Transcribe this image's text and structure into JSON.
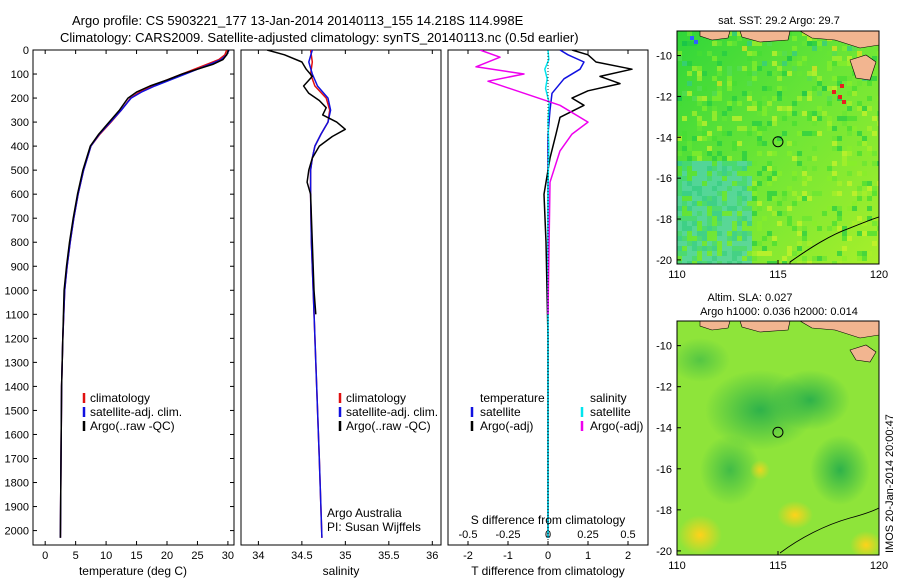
{
  "header": {
    "line1": "Argo profile: CS 5903221_177 13-Jan-2014 20140113_155 14.218S 114.998E",
    "line2": "Climatology: CARS2009. Satellite-adjusted climatology: synTS_20140113.nc (0.5d earlier)"
  },
  "colors": {
    "climatology": "#e01010",
    "satellite": "#1010e0",
    "argo": "#000000",
    "sat_salinity": "#00e5ee",
    "argo_adj_salinity": "#ee00ee"
  },
  "chart_data": [
    {
      "id": "temperature",
      "type": "line",
      "xlabel": "temperature (deg C)",
      "xlim": [
        -2,
        31
      ],
      "xticks": [
        0,
        5,
        10,
        15,
        20,
        25,
        30
      ],
      "ylim": [
        2060,
        0
      ],
      "yticks": [
        0,
        100,
        200,
        300,
        400,
        500,
        600,
        700,
        800,
        900,
        1000,
        1100,
        1200,
        1300,
        1400,
        1500,
        1600,
        1700,
        1800,
        1900,
        2000
      ],
      "legend": [
        "climatology",
        "satellite-adj. clim.",
        "Argo(..raw -QC)"
      ],
      "series": [
        {
          "name": "climatology",
          "color_key": "climatology",
          "x": [
            29.8,
            29.5,
            28.5,
            26.5,
            24.5,
            22.5,
            20.0,
            17.5,
            15.5,
            14.0,
            12.5,
            10.8,
            9.0,
            7.5,
            6.3,
            5.4,
            4.7,
            4.1,
            3.6,
            3.2,
            2.9,
            2.7,
            2.6,
            2.5
          ],
          "y": [
            0,
            20,
            40,
            60,
            80,
            100,
            125,
            150,
            175,
            200,
            250,
            300,
            350,
            400,
            500,
            600,
            700,
            800,
            900,
            1000,
            1200,
            1400,
            1700,
            2030
          ]
        },
        {
          "name": "satellite-adj. clim.",
          "color_key": "satellite",
          "x": [
            30.2,
            29.8,
            28.9,
            27.0,
            25.0,
            23.0,
            20.5,
            18.0,
            15.8,
            14.1,
            12.5,
            10.7,
            8.9,
            7.5,
            6.3,
            5.4,
            4.7,
            4.1,
            3.6,
            3.2,
            2.9,
            2.7,
            2.6,
            2.5
          ],
          "y": [
            0,
            20,
            40,
            60,
            80,
            100,
            125,
            150,
            175,
            200,
            250,
            300,
            350,
            400,
            500,
            600,
            700,
            800,
            900,
            1000,
            1200,
            1400,
            1700,
            2030
          ]
        },
        {
          "name": "Argo(..raw -QC)",
          "color_key": "argo",
          "x": [
            30.1,
            29.8,
            29.2,
            27.5,
            25.0,
            22.5,
            20.0,
            17.2,
            15.0,
            13.6,
            12.2,
            10.5,
            8.8,
            7.4,
            6.2,
            5.3,
            4.6,
            4.0,
            3.5,
            3.1,
            2.9,
            2.7,
            2.6,
            2.5
          ],
          "y": [
            0,
            20,
            40,
            60,
            80,
            100,
            125,
            150,
            175,
            200,
            250,
            300,
            350,
            400,
            500,
            600,
            700,
            800,
            900,
            1000,
            1200,
            1400,
            1700,
            2030
          ]
        }
      ]
    },
    {
      "id": "salinity",
      "type": "line",
      "xlabel": "salinity",
      "xlim": [
        33.8,
        36.1
      ],
      "xticks": [
        34,
        34.5,
        35,
        35.5,
        36
      ],
      "ylim": [
        2060,
        0
      ],
      "legend": [
        "climatology",
        "satellite-adj. clim.",
        "Argo(..raw -QC)"
      ],
      "annotation": [
        "Argo Australia",
        "PI: Susan Wijffels"
      ],
      "series": [
        {
          "name": "climatology",
          "color_key": "climatology",
          "x": [
            34.6,
            34.62,
            34.6,
            34.65,
            34.78,
            34.82,
            34.8,
            34.72,
            34.65,
            34.62,
            34.6,
            34.6,
            34.61,
            34.63,
            34.66,
            34.7,
            34.73
          ],
          "y": [
            0,
            50,
            100,
            150,
            200,
            250,
            300,
            350,
            400,
            450,
            500,
            600,
            800,
            1000,
            1300,
            1700,
            2030
          ]
        },
        {
          "name": "satellite-adj. clim.",
          "color_key": "satellite",
          "x": [
            34.62,
            34.58,
            34.62,
            34.68,
            34.8,
            34.83,
            34.8,
            34.72,
            34.65,
            34.62,
            34.6,
            34.6,
            34.61,
            34.63,
            34.66,
            34.7,
            34.73
          ],
          "y": [
            0,
            50,
            100,
            150,
            200,
            250,
            300,
            350,
            400,
            450,
            500,
            600,
            800,
            1000,
            1300,
            1700,
            2030
          ]
        },
        {
          "name": "Argo(..raw -QC)",
          "color_key": "argo",
          "x": [
            34.1,
            34.3,
            34.5,
            34.55,
            34.62,
            34.52,
            34.58,
            34.7,
            34.78,
            34.74,
            34.9,
            35.0,
            34.85,
            34.7,
            34.62,
            34.58,
            34.56,
            34.6,
            34.62,
            34.64,
            34.66
          ],
          "y": [
            0,
            20,
            50,
            80,
            110,
            150,
            180,
            210,
            240,
            270,
            300,
            330,
            360,
            400,
            450,
            500,
            550,
            600,
            800,
            1000,
            1100
          ]
        }
      ]
    },
    {
      "id": "difference",
      "type": "line",
      "xlabel": "T difference from climatology",
      "xlabel2": "S difference from climatology",
      "xlim": [
        -2.5,
        2.5
      ],
      "xticks": [
        -2,
        -1,
        0,
        1,
        2
      ],
      "xticks_s": [
        -0.5,
        -0.25,
        0,
        0.25,
        0.5
      ],
      "ylim": [
        2060,
        0
      ],
      "legend_groups": [
        {
          "title": "temperature",
          "items": [
            {
              "name": "satellite",
              "color_key": "satellite"
            },
            {
              "name": "Argo(-adj)",
              "color_key": "argo"
            }
          ]
        },
        {
          "title": "salinity",
          "items": [
            {
              "name": "satellite",
              "color_key": "sat_salinity"
            },
            {
              "name": "Argo(-adj)",
              "color_key": "argo_adj_salinity"
            }
          ]
        }
      ],
      "series": [
        {
          "name": "satellite T",
          "color_key": "satellite",
          "x": [
            0.3,
            0.5,
            0.9,
            0.8,
            0.4,
            0.1,
            0.05,
            0.0,
            0.0,
            0.0,
            0.0,
            0.0,
            0.0
          ],
          "y": [
            0,
            20,
            50,
            80,
            120,
            180,
            250,
            350,
            500,
            700,
            1000,
            1500,
            2030
          ]
        },
        {
          "name": "Argo T",
          "color_key": "argo",
          "x": [
            0.6,
            1.0,
            1.2,
            2.1,
            1.3,
            1.8,
            1.0,
            0.6,
            0.9,
            0.3,
            0.2,
            0.05,
            -0.1,
            -0.05,
            0.0,
            0.0
          ],
          "y": [
            0,
            20,
            50,
            80,
            110,
            140,
            170,
            200,
            230,
            280,
            350,
            450,
            600,
            800,
            1200,
            2030
          ]
        },
        {
          "name": "satellite S",
          "color_key": "sat_salinity",
          "x": [
            0.0,
            0.02,
            -0.08,
            -0.02,
            -0.06,
            0.03,
            0.0,
            0.02,
            0.0,
            0.0,
            0.0
          ],
          "y": [
            0,
            40,
            80,
            120,
            160,
            220,
            300,
            400,
            600,
            1000,
            2030
          ]
        },
        {
          "name": "Argo S",
          "color_key": "argo_adj_salinity",
          "x": [
            -1.7,
            -1.2,
            -1.8,
            -0.6,
            -1.5,
            0.3,
            1.0,
            0.6,
            0.3,
            0.05,
            0.0
          ],
          "y": [
            0,
            30,
            70,
            100,
            130,
            230,
            300,
            350,
            420,
            550,
            1100
          ]
        }
      ]
    },
    {
      "id": "sst-map",
      "type": "heatmap",
      "title": "sat. SST: 29.2  Argo: 29.7",
      "xlim": [
        110,
        120
      ],
      "xticks": [
        110,
        115,
        120
      ],
      "ylim": [
        -20.2,
        -8.8
      ],
      "yticks": [
        -10,
        -12,
        -14,
        -16,
        -18,
        -20
      ],
      "marker": {
        "lon": 114.998,
        "lat": -14.218
      }
    },
    {
      "id": "sla-map",
      "type": "heatmap",
      "title": "Altim. SLA: 0.027",
      "subtitle": "Argo h1000: 0.036 h2000: 0.014",
      "xlim": [
        110,
        120
      ],
      "xticks": [
        110,
        115,
        120
      ],
      "ylim": [
        -20.2,
        -8.8
      ],
      "yticks": [
        -10,
        -12,
        -14,
        -16,
        -18,
        -20
      ],
      "marker": {
        "lon": 114.998,
        "lat": -14.218
      }
    }
  ],
  "footer": {
    "stamp": "IMOS 20-Jan-2014 20:00:47"
  }
}
